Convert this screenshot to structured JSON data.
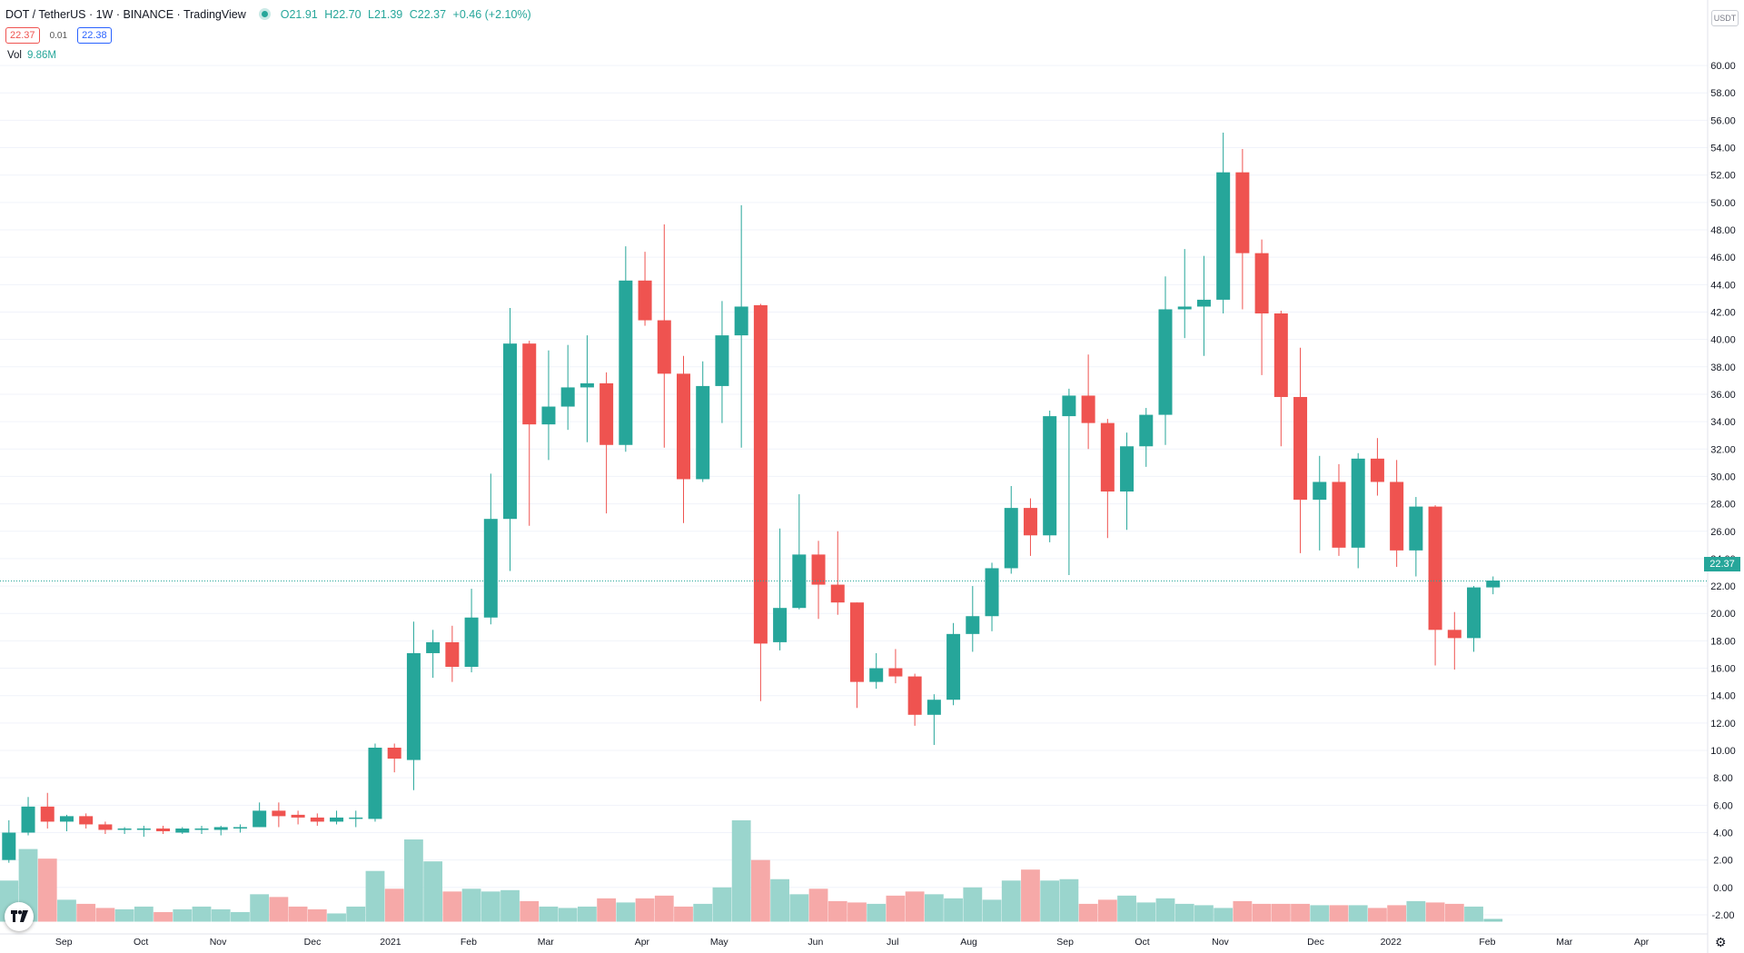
{
  "header": {
    "symbol": "DOT / TetherUS",
    "interval": "1W",
    "exchange": "BINANCE",
    "source": "TradingView",
    "open": "O21.91",
    "high": "H22.70",
    "low": "L21.39",
    "close": "C22.37",
    "change": "+0.46 (+2.10%)"
  },
  "quote": {
    "bid": "22.37",
    "spread": "0.01",
    "ask": "22.38"
  },
  "volume": {
    "label": "Vol",
    "value": "9.86M"
  },
  "currency_tag": "USDT",
  "last_price_label": "22.37",
  "colors": {
    "up": "#26a69a",
    "down": "#ef5350",
    "vol_up": "#9ad5cd",
    "vol_down": "#f6a9a8",
    "grid": "#f0f3fa",
    "axis_text": "#131722"
  },
  "icons": {
    "logo": "tradingview-logo-icon",
    "settings": "gear-icon"
  },
  "chart_data": {
    "type": "candlestick",
    "price_axis": {
      "ticks": [
        "60.00",
        "58.00",
        "56.00",
        "54.00",
        "52.00",
        "50.00",
        "48.00",
        "46.00",
        "44.00",
        "42.00",
        "40.00",
        "38.00",
        "36.00",
        "34.00",
        "32.00",
        "30.00",
        "28.00",
        "26.00",
        "24.00",
        "22.00",
        "20.00",
        "18.00",
        "16.00",
        "14.00",
        "12.00",
        "10.00",
        "8.00",
        "6.00",
        "4.00",
        "2.00",
        "0.00",
        "-2.00"
      ],
      "range": [
        -2.6,
        61
      ]
    },
    "time_axis": {
      "labels": [
        {
          "i": 2.85,
          "t": "Sep"
        },
        {
          "i": 6.85,
          "t": "Oct"
        },
        {
          "i": 10.85,
          "t": "Nov"
        },
        {
          "i": 15.75,
          "t": "Dec"
        },
        {
          "i": 19.8,
          "t": "2021"
        },
        {
          "i": 23.85,
          "t": "Feb"
        },
        {
          "i": 27.85,
          "t": "Mar"
        },
        {
          "i": 32.85,
          "t": "Apr"
        },
        {
          "i": 36.85,
          "t": "May"
        },
        {
          "i": 41.85,
          "t": "Jun"
        },
        {
          "i": 45.85,
          "t": "Jul"
        },
        {
          "i": 49.8,
          "t": "Aug"
        },
        {
          "i": 54.8,
          "t": "Sep"
        },
        {
          "i": 58.8,
          "t": "Oct"
        },
        {
          "i": 62.85,
          "t": "Nov"
        },
        {
          "i": 67.8,
          "t": "Dec"
        },
        {
          "i": 71.7,
          "t": "2022"
        },
        {
          "i": 76.7,
          "t": "Feb"
        },
        {
          "i": 80.7,
          "t": "Mar"
        },
        {
          "i": 84.7,
          "t": "Apr"
        }
      ]
    },
    "last_price": 22.37,
    "candles": [
      {
        "o": 2.0,
        "h": 4.9,
        "l": 1.8,
        "c": 4.0
      },
      {
        "o": 4.0,
        "h": 6.6,
        "l": 3.8,
        "c": 5.9
      },
      {
        "o": 5.9,
        "h": 6.9,
        "l": 4.3,
        "c": 4.8
      },
      {
        "o": 4.8,
        "h": 5.3,
        "l": 4.1,
        "c": 5.2
      },
      {
        "o": 5.2,
        "h": 5.4,
        "l": 4.3,
        "c": 4.6
      },
      {
        "o": 4.6,
        "h": 4.8,
        "l": 3.9,
        "c": 4.2
      },
      {
        "o": 4.2,
        "h": 4.4,
        "l": 3.9,
        "c": 4.3
      },
      {
        "o": 4.2,
        "h": 4.5,
        "l": 3.7,
        "c": 4.3
      },
      {
        "o": 4.3,
        "h": 4.5,
        "l": 3.9,
        "c": 4.1
      },
      {
        "o": 4.0,
        "h": 4.4,
        "l": 3.9,
        "c": 4.3
      },
      {
        "o": 4.2,
        "h": 4.5,
        "l": 3.9,
        "c": 4.3
      },
      {
        "o": 4.2,
        "h": 4.5,
        "l": 3.8,
        "c": 4.4
      },
      {
        "o": 4.3,
        "h": 4.6,
        "l": 4.0,
        "c": 4.4
      },
      {
        "o": 4.4,
        "h": 6.2,
        "l": 4.4,
        "c": 5.6
      },
      {
        "o": 5.6,
        "h": 6.2,
        "l": 4.4,
        "c": 5.2
      },
      {
        "o": 5.3,
        "h": 5.6,
        "l": 4.6,
        "c": 5.1
      },
      {
        "o": 5.1,
        "h": 5.4,
        "l": 4.5,
        "c": 4.8
      },
      {
        "o": 4.8,
        "h": 5.6,
        "l": 4.6,
        "c": 5.1
      },
      {
        "o": 5.1,
        "h": 5.6,
        "l": 4.4,
        "c": 5.1
      },
      {
        "o": 5.0,
        "h": 10.5,
        "l": 4.8,
        "c": 10.2
      },
      {
        "o": 10.2,
        "h": 10.5,
        "l": 8.4,
        "c": 9.4
      },
      {
        "o": 9.3,
        "h": 19.4,
        "l": 7.1,
        "c": 17.1
      },
      {
        "o": 17.1,
        "h": 18.8,
        "l": 15.3,
        "c": 17.9
      },
      {
        "o": 17.9,
        "h": 19.1,
        "l": 15.0,
        "c": 16.1
      },
      {
        "o": 16.1,
        "h": 21.8,
        "l": 15.7,
        "c": 19.7
      },
      {
        "o": 19.7,
        "h": 30.2,
        "l": 19.2,
        "c": 26.9
      },
      {
        "o": 26.9,
        "h": 42.3,
        "l": 23.1,
        "c": 39.7
      },
      {
        "o": 39.7,
        "h": 39.9,
        "l": 26.4,
        "c": 33.8
      },
      {
        "o": 33.8,
        "h": 39.2,
        "l": 31.2,
        "c": 35.1
      },
      {
        "o": 35.1,
        "h": 39.6,
        "l": 33.4,
        "c": 36.5
      },
      {
        "o": 36.5,
        "h": 40.3,
        "l": 32.5,
        "c": 36.8
      },
      {
        "o": 36.8,
        "h": 37.6,
        "l": 27.3,
        "c": 32.3
      },
      {
        "o": 32.3,
        "h": 46.8,
        "l": 31.8,
        "c": 44.3
      },
      {
        "o": 44.3,
        "h": 46.4,
        "l": 41.0,
        "c": 41.4
      },
      {
        "o": 41.4,
        "h": 48.4,
        "l": 32.1,
        "c": 37.5
      },
      {
        "o": 37.5,
        "h": 38.8,
        "l": 26.6,
        "c": 29.8
      },
      {
        "o": 29.8,
        "h": 38.4,
        "l": 29.6,
        "c": 36.6
      },
      {
        "o": 36.6,
        "h": 42.8,
        "l": 33.9,
        "c": 40.3
      },
      {
        "o": 40.3,
        "h": 49.8,
        "l": 32.1,
        "c": 42.4
      },
      {
        "o": 42.5,
        "h": 42.6,
        "l": 13.6,
        "c": 17.8
      },
      {
        "o": 17.9,
        "h": 26.2,
        "l": 17.3,
        "c": 20.4
      },
      {
        "o": 20.4,
        "h": 28.7,
        "l": 20.3,
        "c": 24.3
      },
      {
        "o": 24.3,
        "h": 25.3,
        "l": 19.6,
        "c": 22.1
      },
      {
        "o": 22.1,
        "h": 26.0,
        "l": 19.9,
        "c": 20.8
      },
      {
        "o": 20.8,
        "h": 20.8,
        "l": 13.1,
        "c": 15.0
      },
      {
        "o": 15.0,
        "h": 17.1,
        "l": 14.5,
        "c": 16.0
      },
      {
        "o": 16.0,
        "h": 17.4,
        "l": 14.9,
        "c": 15.4
      },
      {
        "o": 15.4,
        "h": 15.6,
        "l": 11.8,
        "c": 12.6
      },
      {
        "o": 12.6,
        "h": 14.1,
        "l": 10.4,
        "c": 13.7
      },
      {
        "o": 13.7,
        "h": 19.3,
        "l": 13.3,
        "c": 18.5
      },
      {
        "o": 18.5,
        "h": 22.0,
        "l": 17.2,
        "c": 19.8
      },
      {
        "o": 19.8,
        "h": 23.7,
        "l": 18.7,
        "c": 23.3
      },
      {
        "o": 23.3,
        "h": 29.3,
        "l": 22.9,
        "c": 27.7
      },
      {
        "o": 27.7,
        "h": 28.4,
        "l": 24.2,
        "c": 25.7
      },
      {
        "o": 25.7,
        "h": 34.8,
        "l": 25.2,
        "c": 34.4
      },
      {
        "o": 34.4,
        "h": 36.4,
        "l": 22.8,
        "c": 35.9
      },
      {
        "o": 35.9,
        "h": 38.9,
        "l": 32.0,
        "c": 33.9
      },
      {
        "o": 33.9,
        "h": 34.2,
        "l": 25.5,
        "c": 28.9
      },
      {
        "o": 28.9,
        "h": 33.2,
        "l": 26.1,
        "c": 32.2
      },
      {
        "o": 32.2,
        "h": 35.0,
        "l": 30.7,
        "c": 34.5
      },
      {
        "o": 34.5,
        "h": 44.6,
        "l": 32.3,
        "c": 42.2
      },
      {
        "o": 42.2,
        "h": 46.6,
        "l": 40.1,
        "c": 42.4
      },
      {
        "o": 42.4,
        "h": 46.1,
        "l": 38.8,
        "c": 42.9
      },
      {
        "o": 42.9,
        "h": 55.1,
        "l": 41.9,
        "c": 52.2
      },
      {
        "o": 52.2,
        "h": 53.9,
        "l": 42.2,
        "c": 46.3
      },
      {
        "o": 46.3,
        "h": 47.3,
        "l": 37.4,
        "c": 41.9
      },
      {
        "o": 41.9,
        "h": 42.1,
        "l": 32.2,
        "c": 35.8
      },
      {
        "o": 35.8,
        "h": 39.4,
        "l": 24.4,
        "c": 28.3
      },
      {
        "o": 28.3,
        "h": 31.5,
        "l": 24.6,
        "c": 29.6
      },
      {
        "o": 29.6,
        "h": 30.9,
        "l": 24.2,
        "c": 24.8
      },
      {
        "o": 24.8,
        "h": 31.7,
        "l": 23.3,
        "c": 31.3
      },
      {
        "o": 31.3,
        "h": 32.8,
        "l": 28.6,
        "c": 29.6
      },
      {
        "o": 29.6,
        "h": 31.2,
        "l": 23.4,
        "c": 24.6
      },
      {
        "o": 24.6,
        "h": 28.5,
        "l": 22.7,
        "c": 27.8
      },
      {
        "o": 27.8,
        "h": 27.9,
        "l": 16.2,
        "c": 18.8
      },
      {
        "o": 18.8,
        "h": 20.1,
        "l": 15.9,
        "c": 18.2
      },
      {
        "o": 18.2,
        "h": 22.0,
        "l": 17.2,
        "c": 21.9
      },
      {
        "o": 21.9,
        "h": 22.7,
        "l": 21.4,
        "c": 22.4
      }
    ],
    "volume_scale_ref": 20.8,
    "volumes": [
      3.0,
      5.3,
      4.6,
      1.6,
      1.3,
      1.0,
      0.9,
      1.1,
      0.7,
      0.9,
      1.1,
      0.9,
      0.7,
      2.0,
      1.8,
      1.1,
      0.9,
      0.6,
      1.1,
      3.7,
      2.4,
      6.0,
      4.4,
      2.2,
      2.4,
      2.2,
      2.3,
      1.5,
      1.1,
      1.0,
      1.1,
      1.7,
      1.4,
      1.7,
      1.9,
      1.1,
      1.3,
      2.5,
      7.4,
      4.5,
      3.1,
      2.0,
      2.4,
      1.5,
      1.4,
      1.3,
      1.9,
      2.2,
      2.0,
      1.7,
      2.5,
      1.6,
      3.0,
      3.8,
      3.0,
      3.1,
      1.3,
      1.6,
      1.9,
      1.4,
      1.7,
      1.3,
      1.2,
      1.0,
      1.5,
      1.3,
      1.3,
      1.3,
      1.2,
      1.2,
      1.2,
      1.0,
      1.2,
      1.5,
      1.4,
      1.3,
      1.1,
      0.2
    ]
  }
}
